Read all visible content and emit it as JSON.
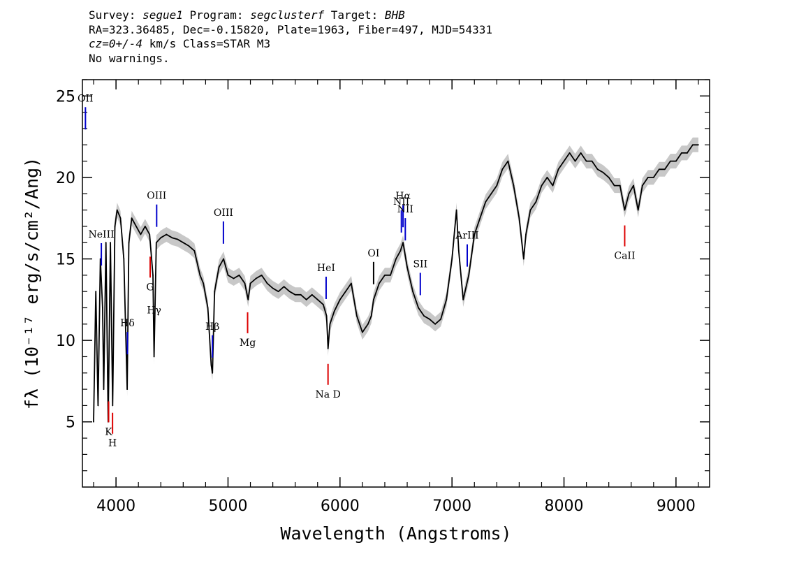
{
  "header": {
    "survey_label": "Survey: ",
    "survey_value": "segue1",
    "program_label": " Program: ",
    "program_value": "segclusterf",
    "target_label": " Target: ",
    "target_value": "BHB",
    "line2": "RA=323.36485, Dec=-0.15820, Plate=1963, Fiber=497, MJD=54331",
    "cz_value": "cz=0+/-4",
    "line3_rest": " km/s Class=STAR M3",
    "line4": "No warnings."
  },
  "chart_data": {
    "type": "line",
    "xlabel": "Wavelength (Angstroms)",
    "ylabel": "fλ (10⁻¹⁷ erg/s/cm²/Ang)",
    "xlim": [
      3700,
      9300
    ],
    "ylim": [
      1,
      26
    ],
    "xticks": [
      4000,
      5000,
      6000,
      7000,
      8000,
      9000
    ],
    "xtick_labels": [
      "4000",
      "5000",
      "6000",
      "7000",
      "8000",
      "9000"
    ],
    "yticks": [
      5,
      10,
      15,
      20,
      25
    ],
    "ytick_labels": [
      "5",
      "10",
      "15",
      "20",
      "25"
    ],
    "grid": false,
    "series": [
      {
        "color": "#000000",
        "x": [
          3800,
          3820,
          3840,
          3860,
          3880,
          3890,
          3910,
          3930,
          3950,
          3970,
          3990,
          4010,
          4040,
          4070,
          4100,
          4115,
          4140,
          4180,
          4220,
          4260,
          4300,
          4330,
          4340,
          4360,
          4400,
          4450,
          4500,
          4550,
          4600,
          4650,
          4700,
          4750,
          4780,
          4820,
          4850,
          4861,
          4880,
          4920,
          4960,
          5000,
          5050,
          5100,
          5150,
          5180,
          5200,
          5250,
          5300,
          5350,
          5400,
          5450,
          5500,
          5550,
          5600,
          5650,
          5700,
          5750,
          5800,
          5850,
          5880,
          5893,
          5910,
          5950,
          6000,
          6050,
          6100,
          6150,
          6200,
          6250,
          6280,
          6300,
          6350,
          6400,
          6450,
          6500,
          6540,
          6563,
          6600,
          6650,
          6700,
          6750,
          6800,
          6850,
          6900,
          6950,
          7000,
          7040,
          7060,
          7100,
          7150,
          7200,
          7250,
          7300,
          7350,
          7400,
          7450,
          7500,
          7550,
          7600,
          7640,
          7660,
          7700,
          7750,
          7800,
          7850,
          7900,
          7950,
          8000,
          8050,
          8100,
          8150,
          8200,
          8250,
          8300,
          8350,
          8400,
          8450,
          8500,
          8542,
          8580,
          8620,
          8662,
          8700,
          8750,
          8800,
          8850,
          8900,
          8950,
          9000,
          9050,
          9100,
          9150,
          9200
        ],
        "y": [
          5,
          13,
          6,
          15,
          12,
          7,
          16,
          5,
          16,
          6,
          17,
          18,
          17.5,
          15,
          7,
          16,
          17.5,
          17,
          16.5,
          17,
          16.5,
          14,
          9,
          16,
          16.3,
          16.5,
          16.3,
          16.2,
          16,
          15.8,
          15.5,
          14,
          13.5,
          12,
          8.5,
          8,
          13,
          14.5,
          15,
          14,
          13.8,
          14,
          13.5,
          12.5,
          13.5,
          13.8,
          14,
          13.5,
          13.2,
          13,
          13.3,
          13,
          12.8,
          12.8,
          12.5,
          12.8,
          12.5,
          12.2,
          11.5,
          9.5,
          11,
          11.8,
          12.5,
          13,
          13.5,
          11.5,
          10.5,
          11,
          11.5,
          12.5,
          13.5,
          14,
          14,
          15,
          15.5,
          16,
          14.5,
          13,
          12,
          11.5,
          11.3,
          11,
          11.3,
          12.5,
          15,
          18,
          15.5,
          12.5,
          14,
          16.5,
          17.5,
          18.5,
          19,
          19.5,
          20.5,
          21,
          19.5,
          17.5,
          15,
          16.5,
          18,
          18.5,
          19.5,
          20,
          19.5,
          20.5,
          21,
          21.5,
          21,
          21.5,
          21,
          21,
          20.5,
          20.3,
          20,
          19.5,
          19.5,
          18,
          19,
          19.5,
          18,
          19.5,
          20,
          20,
          20.5,
          20.5,
          21,
          21,
          21.5,
          21.5,
          22,
          22
        ]
      }
    ],
    "line_labels": [
      {
        "text": "OII",
        "x": 3727,
        "color": "#0000cc"
      },
      {
        "text": "NeIII",
        "x": 3869,
        "color": "#0000cc"
      },
      {
        "text": "K",
        "x": 3934,
        "color": "#dd0000"
      },
      {
        "text": "H",
        "x": 3969,
        "color": "#dd0000"
      },
      {
        "text": "Hδ",
        "x": 4102,
        "color": "#0000cc"
      },
      {
        "text": "G",
        "x": 4305,
        "color": "#dd0000"
      },
      {
        "text": "Hγ",
        "x": 4340,
        "color": "#000000"
      },
      {
        "text": "OIII",
        "x": 4363,
        "color": "#0000cc"
      },
      {
        "text": "Hβ",
        "x": 4861,
        "color": "#0000cc"
      },
      {
        "text": "OIII",
        "x": 4959,
        "color": "#0000cc"
      },
      {
        "text": "Mg",
        "x": 5175,
        "color": "#dd0000"
      },
      {
        "text": "HeI",
        "x": 5876,
        "color": "#0000cc"
      },
      {
        "text": "Na D",
        "x": 5893,
        "color": "#dd0000"
      },
      {
        "text": "OI",
        "x": 6300,
        "color": "#000000"
      },
      {
        "text": "NII",
        "x": 6548,
        "color": "#0000cc"
      },
      {
        "text": "Hα",
        "x": 6563,
        "color": "#0000cc"
      },
      {
        "text": "NII",
        "x": 6583,
        "color": "#0000cc"
      },
      {
        "text": "SII",
        "x": 6717,
        "color": "#0000cc"
      },
      {
        "text": "ArIII",
        "x": 7136,
        "color": "#0000cc"
      },
      {
        "text": "CaII",
        "x": 8542,
        "color": "#dd0000"
      }
    ]
  }
}
